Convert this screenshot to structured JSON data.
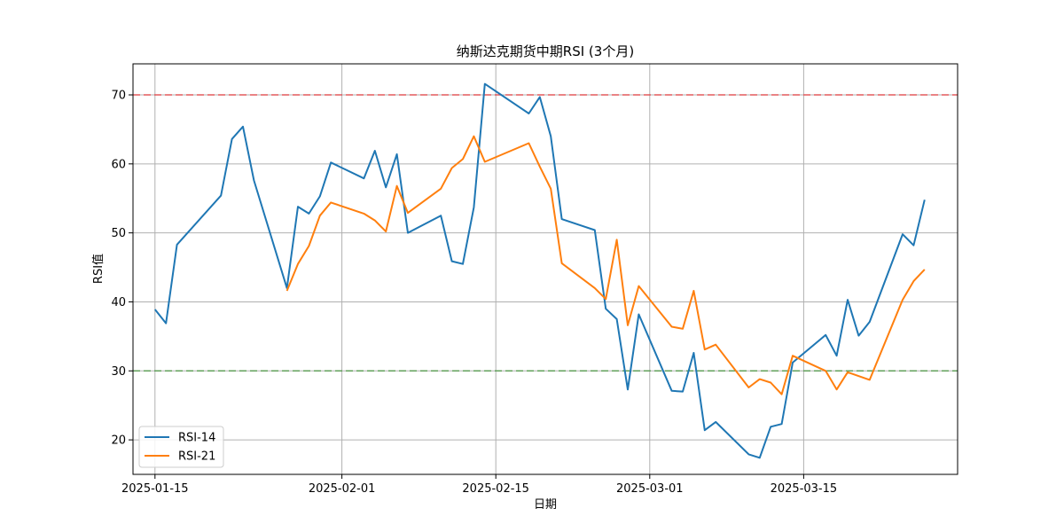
{
  "chart_data": {
    "type": "line",
    "title": "纳斯达克期货中期RSI (3个月)",
    "xlabel": "日期",
    "ylabel": "RSI值",
    "ylim": [
      15,
      74.5
    ],
    "xlim": [
      "2025-01-13",
      "2025-03-29"
    ],
    "x_ticks": [
      "2025-01-15",
      "2025-02-01",
      "2025-02-15",
      "2025-03-01",
      "2025-03-15"
    ],
    "y_ticks": [
      20,
      30,
      40,
      50,
      60,
      70
    ],
    "grid": true,
    "legend_position": "lower-left",
    "reference_lines": [
      {
        "y": 70,
        "color": "#e8474a",
        "style": "dashed"
      },
      {
        "y": 30,
        "color": "#4f9a48",
        "style": "dashed"
      }
    ],
    "series": [
      {
        "name": "RSI-14",
        "color": "#1f77b4",
        "points": [
          [
            "2025-01-15",
            38.9
          ],
          [
            "2025-01-16",
            36.9
          ],
          [
            "2025-01-17",
            48.3
          ],
          [
            "2025-01-21",
            55.4
          ],
          [
            "2025-01-22",
            63.6
          ],
          [
            "2025-01-23",
            65.4
          ],
          [
            "2025-01-24",
            57.6
          ],
          [
            "2025-01-27",
            42.0
          ],
          [
            "2025-01-28",
            53.8
          ],
          [
            "2025-01-29",
            52.8
          ],
          [
            "2025-01-30",
            55.3
          ],
          [
            "2025-01-31",
            60.2
          ],
          [
            "2025-02-03",
            57.9
          ],
          [
            "2025-02-04",
            61.9
          ],
          [
            "2025-02-05",
            56.6
          ],
          [
            "2025-02-06",
            61.4
          ],
          [
            "2025-02-07",
            50.0
          ],
          [
            "2025-02-10",
            52.5
          ],
          [
            "2025-02-11",
            45.9
          ],
          [
            "2025-02-12",
            45.5
          ],
          [
            "2025-02-13",
            53.7
          ],
          [
            "2025-02-14",
            71.6
          ],
          [
            "2025-02-18",
            67.3
          ],
          [
            "2025-02-19",
            69.7
          ],
          [
            "2025-02-20",
            64.0
          ],
          [
            "2025-02-21",
            52.0
          ],
          [
            "2025-02-24",
            50.4
          ],
          [
            "2025-02-25",
            39.0
          ],
          [
            "2025-02-26",
            37.5
          ],
          [
            "2025-02-27",
            27.3
          ],
          [
            "2025-02-28",
            38.2
          ],
          [
            "2025-03-03",
            27.1
          ],
          [
            "2025-03-04",
            27.0
          ],
          [
            "2025-03-05",
            32.6
          ],
          [
            "2025-03-06",
            21.4
          ],
          [
            "2025-03-07",
            22.6
          ],
          [
            "2025-03-10",
            17.9
          ],
          [
            "2025-03-11",
            17.4
          ],
          [
            "2025-03-12",
            21.9
          ],
          [
            "2025-03-13",
            22.3
          ],
          [
            "2025-03-14",
            31.2
          ],
          [
            "2025-03-17",
            35.2
          ],
          [
            "2025-03-18",
            32.2
          ],
          [
            "2025-03-19",
            40.3
          ],
          [
            "2025-03-20",
            35.1
          ],
          [
            "2025-03-21",
            37.1
          ],
          [
            "2025-03-24",
            49.8
          ],
          [
            "2025-03-25",
            48.2
          ],
          [
            "2025-03-26",
            54.8
          ]
        ]
      },
      {
        "name": "RSI-21",
        "color": "#ff7f0e",
        "points": [
          [
            "2025-01-27",
            41.6
          ],
          [
            "2025-01-28",
            45.5
          ],
          [
            "2025-01-29",
            48.1
          ],
          [
            "2025-01-30",
            52.5
          ],
          [
            "2025-01-31",
            54.4
          ],
          [
            "2025-02-03",
            52.8
          ],
          [
            "2025-02-04",
            51.8
          ],
          [
            "2025-02-05",
            50.2
          ],
          [
            "2025-02-06",
            56.8
          ],
          [
            "2025-02-07",
            52.9
          ],
          [
            "2025-02-10",
            56.4
          ],
          [
            "2025-02-11",
            59.4
          ],
          [
            "2025-02-12",
            60.7
          ],
          [
            "2025-02-13",
            64.0
          ],
          [
            "2025-02-14",
            60.3
          ],
          [
            "2025-02-18",
            63.0
          ],
          [
            "2025-02-19",
            59.6
          ],
          [
            "2025-02-20",
            56.4
          ],
          [
            "2025-02-21",
            45.6
          ],
          [
            "2025-02-24",
            42.0
          ],
          [
            "2025-02-25",
            40.4
          ],
          [
            "2025-02-26",
            49.0
          ],
          [
            "2025-02-27",
            36.6
          ],
          [
            "2025-02-28",
            42.3
          ],
          [
            "2025-03-03",
            36.4
          ],
          [
            "2025-03-04",
            36.1
          ],
          [
            "2025-03-05",
            41.6
          ],
          [
            "2025-03-06",
            33.1
          ],
          [
            "2025-03-07",
            33.8
          ],
          [
            "2025-03-10",
            27.6
          ],
          [
            "2025-03-11",
            28.8
          ],
          [
            "2025-03-12",
            28.3
          ],
          [
            "2025-03-13",
            26.6
          ],
          [
            "2025-03-14",
            32.2
          ],
          [
            "2025-03-17",
            30.0
          ],
          [
            "2025-03-18",
            27.3
          ],
          [
            "2025-03-19",
            29.8
          ],
          [
            "2025-03-21",
            28.7
          ],
          [
            "2025-03-24",
            40.3
          ],
          [
            "2025-03-25",
            43.0
          ],
          [
            "2025-03-26",
            44.7
          ]
        ]
      }
    ]
  }
}
